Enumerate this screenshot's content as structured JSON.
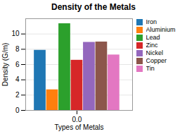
{
  "chart_data": {
    "type": "bar",
    "title": "Density of the Metals",
    "xlabel": "Types of Metals",
    "ylabel": "Density (G/m)",
    "categories": [
      "Iron",
      "Aluminium",
      "Lead",
      "Zinc",
      "Nickel",
      "Copper",
      "Tin"
    ],
    "values": [
      7.87,
      2.7,
      11.35,
      6.57,
      8.91,
      8.96,
      7.26
    ],
    "colors": [
      "#1f77b4",
      "#ff7f0e",
      "#2ca02c",
      "#d62728",
      "#9467bd",
      "#8c564b",
      "#e377c2"
    ],
    "xlim": [
      -0.48,
      0.52
    ],
    "xticks": [
      0
    ],
    "ylim": [
      0,
      12
    ],
    "yticks": [
      0,
      2,
      4,
      6,
      8,
      10
    ],
    "grid": true,
    "legend": "right"
  }
}
